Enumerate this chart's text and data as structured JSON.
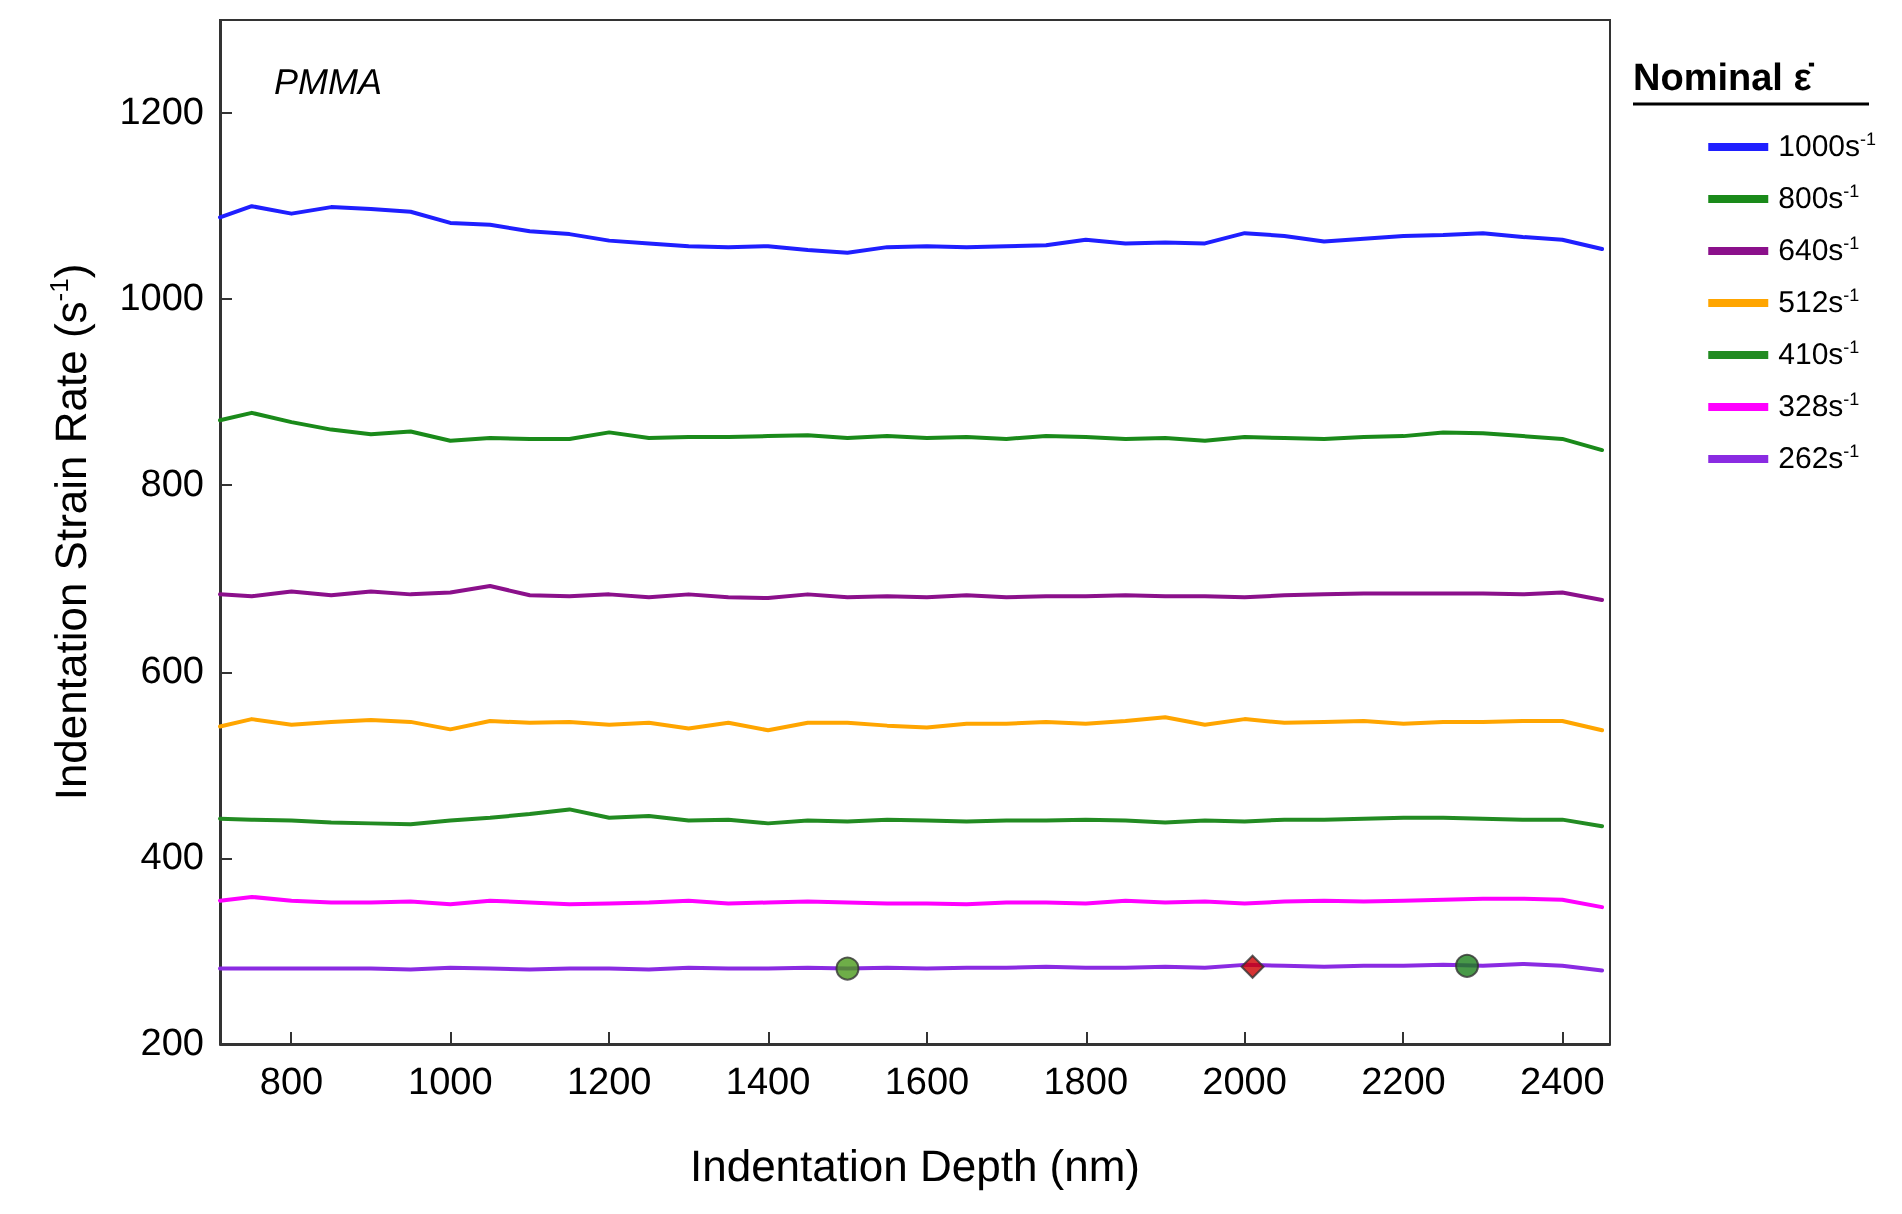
{
  "chart_data": {
    "type": "line",
    "xlabel": "Indentation Depth (nm)",
    "ylabel": "Indentation Strain Rate (s$^{-1}$)",
    "legend_title": "Nominal ε̇",
    "legend": "right",
    "grid": false,
    "marker": "none",
    "line_style": "solid",
    "annotations": [
      "PMMA"
    ],
    "xlim": [
      710,
      2460
    ],
    "xticks": [
      800,
      1000,
      1200,
      1400,
      1600,
      1800,
      2000,
      2200,
      2400
    ],
    "ylim": [
      200,
      1300
    ],
    "yticks": [
      200,
      400,
      600,
      800,
      1000,
      1200
    ],
    "x": [
      710,
      750,
      800,
      850,
      900,
      950,
      1000,
      1050,
      1100,
      1150,
      1200,
      1250,
      1300,
      1350,
      1400,
      1450,
      1500,
      1550,
      1600,
      1650,
      1700,
      1750,
      1800,
      1850,
      1900,
      1950,
      2000,
      2050,
      2100,
      2150,
      2200,
      2250,
      2300,
      2350,
      2400,
      2450
    ],
    "series": [
      {
        "name": "1000s$^{-1}$",
        "color": "#1f1fff",
        "values": [
          1088,
          1100,
          1092,
          1099,
          1097,
          1094,
          1082,
          1080,
          1073,
          1070,
          1063,
          1060,
          1057,
          1056,
          1057,
          1053,
          1050,
          1056,
          1057,
          1056,
          1057,
          1058,
          1064,
          1060,
          1061,
          1060,
          1071,
          1068,
          1062,
          1065,
          1068,
          1069,
          1071,
          1067,
          1064,
          1054
        ]
      },
      {
        "name": "800s$^{-1}$",
        "color": "#1a8a1a",
        "values": [
          870,
          878,
          868,
          860,
          855,
          858,
          848,
          851,
          850,
          850,
          857,
          851,
          852,
          852,
          853,
          854,
          851,
          853,
          851,
          852,
          850,
          853,
          852,
          850,
          851,
          848,
          852,
          851,
          850,
          852,
          853,
          857,
          856,
          853,
          850,
          838
        ]
      },
      {
        "name": "640s$^{-1}$",
        "color": "#8b108b",
        "values": [
          683,
          681,
          686,
          682,
          686,
          683,
          685,
          692,
          682,
          681,
          683,
          680,
          683,
          680,
          679,
          683,
          680,
          681,
          680,
          682,
          680,
          681,
          681,
          682,
          681,
          681,
          680,
          682,
          683,
          684,
          684,
          684,
          684,
          683,
          685,
          677
        ]
      },
      {
        "name": "512s$^{-1}$",
        "color": "#ffa500",
        "values": [
          541,
          549,
          543,
          546,
          548,
          546,
          538,
          547,
          545,
          546,
          543,
          545,
          539,
          545,
          537,
          545,
          545,
          542,
          540,
          544,
          544,
          546,
          544,
          547,
          551,
          543,
          549,
          545,
          546,
          547,
          544,
          546,
          546,
          547,
          547,
          537
        ]
      },
      {
        "name": "410s$^{-1}$",
        "color": "#228b22",
        "values": [
          442,
          441,
          440,
          438,
          437,
          436,
          440,
          443,
          447,
          452,
          443,
          445,
          440,
          441,
          437,
          440,
          439,
          441,
          440,
          439,
          440,
          440,
          441,
          440,
          438,
          440,
          439,
          441,
          441,
          442,
          443,
          443,
          442,
          441,
          441,
          434
        ]
      },
      {
        "name": "328s$^{-1}$",
        "color": "#ff00ff",
        "values": [
          354,
          358,
          354,
          352,
          352,
          353,
          350,
          354,
          352,
          350,
          351,
          352,
          354,
          351,
          352,
          353,
          352,
          351,
          351,
          350,
          352,
          352,
          351,
          354,
          352,
          353,
          351,
          353,
          354,
          353,
          354,
          355,
          356,
          356,
          355,
          347
        ]
      },
      {
        "name": "262s$^{-1}$",
        "color": "#8a2be2",
        "values": [
          281,
          281,
          281,
          281,
          281,
          280,
          282,
          281,
          280,
          281,
          281,
          280,
          282,
          281,
          281,
          282,
          281,
          282,
          281,
          282,
          282,
          283,
          282,
          282,
          283,
          282,
          285,
          284,
          283,
          284,
          284,
          285,
          284,
          286,
          284,
          279
        ]
      },
      {
        "type": "scatter",
        "x": [
          1500,
          2280
        ],
        "values": [
          281,
          284
        ],
        "colors": [
          "#4a9a1a",
          "#1a7f1a"
        ],
        "marker": "circle"
      },
      {
        "type": "scatter",
        "x": [
          2010
        ],
        "values": [
          283
        ],
        "color": "#cc0000",
        "marker": "diamond"
      }
    ]
  }
}
